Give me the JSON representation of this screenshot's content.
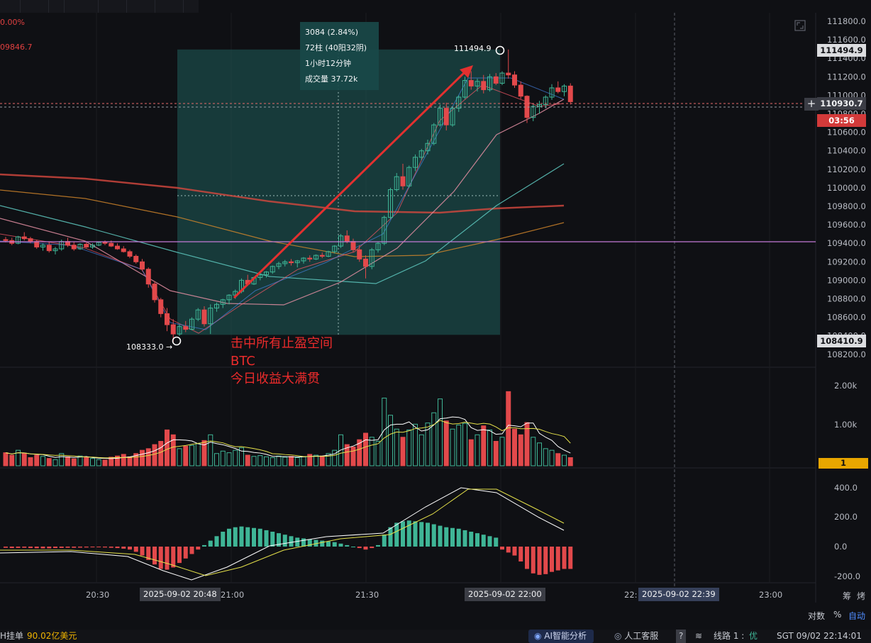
{
  "header": {
    "pct_change": "0.00%",
    "prev_price": "09846.7"
  },
  "measure_box": {
    "line1": "3084 (2.84%)",
    "line2": "72柱 (40阳32阴)",
    "line3": "1小时12分钟",
    "line4": "成交量 37.72k"
  },
  "annotation": {
    "line1": "击中所有止盈空间",
    "line2": "BTC",
    "line3": "今日收益大满贯"
  },
  "markers": {
    "high": "111494.9",
    "low": "108333.0 →"
  },
  "price_axis": {
    "ticks": [
      "111800.0",
      "111600.0",
      "111400.0",
      "111200.0",
      "111000.0",
      "110800.0",
      "110600.0",
      "110400.0",
      "110200.0",
      "110000.0",
      "109800.0",
      "109600.0",
      "109400.0",
      "109200.0",
      "109000.0",
      "108800.0",
      "108600.0",
      "108400.0",
      "108200.0"
    ],
    "tag_high": "111494.9",
    "tag_last": "110930.7",
    "tag_countdown": "03:56",
    "tag_low": "108410.9"
  },
  "volume_axis": {
    "ticks": [
      "2.00k",
      "1.00k"
    ],
    "tag": "1"
  },
  "macd_axis": {
    "ticks": [
      "400.0",
      "200.0",
      "0.0",
      "-200.0"
    ]
  },
  "time_axis": {
    "ticks": [
      "20:30",
      "21:00",
      "21:30",
      "22:",
      "23:00"
    ],
    "tag_start": "2025-09-02 20:48",
    "tag_end": "2025-09-02 22:00",
    "tag_cursor": "2025-09-02 22:39"
  },
  "axis_controls": {
    "log": "对数",
    "percent": "%",
    "auto": "自动"
  },
  "right_chars": {
    "a": "筹",
    "b": "烤"
  },
  "status_bar": {
    "orders_label": "H挂单",
    "orders_value": "90.02亿美元",
    "ai_label": "AI智能分析",
    "service_label": "人工客服",
    "help": "?",
    "route_label": "线路 1 :",
    "route_quality": "优",
    "clock": "SGT  09/02 22:14:01"
  },
  "colors": {
    "up": "#3fb596",
    "down": "#e2494b",
    "measure_fill": "#1f5c5a",
    "ma_red": "#d8483f",
    "ma_orange": "#d88a2a",
    "ma_teal": "#5ec9c0",
    "ma_pink": "#e58fa3",
    "ma_purple": "#c47ad8",
    "arrow": "#e3302f"
  },
  "chart_data": {
    "type": "candlestick",
    "interval_minutes": 1,
    "ohlc": [
      [
        109440,
        109470,
        109410,
        109430
      ],
      [
        109430,
        109460,
        109380,
        109400
      ],
      [
        109400,
        109480,
        109390,
        109470
      ],
      [
        109470,
        109520,
        109430,
        109450
      ],
      [
        109450,
        109470,
        109400,
        109420
      ],
      [
        109420,
        109440,
        109340,
        109360
      ],
      [
        109360,
        109400,
        109320,
        109380
      ],
      [
        109380,
        109420,
        109300,
        109320
      ],
      [
        109320,
        109360,
        109280,
        109340
      ],
      [
        109340,
        109440,
        109320,
        109420
      ],
      [
        109420,
        109460,
        109360,
        109380
      ],
      [
        109380,
        109420,
        109320,
        109340
      ],
      [
        109340,
        109400,
        109330,
        109390
      ],
      [
        109390,
        109420,
        109350,
        109360
      ],
      [
        109360,
        109400,
        109340,
        109380
      ],
      [
        109380,
        109420,
        109370,
        109410
      ],
      [
        109410,
        109430,
        109380,
        109400
      ],
      [
        109400,
        109430,
        109360,
        109370
      ],
      [
        109370,
        109400,
        109330,
        109340
      ],
      [
        109340,
        109370,
        109300,
        109310
      ],
      [
        109310,
        109330,
        109240,
        109260
      ],
      [
        109260,
        109280,
        109180,
        109200
      ],
      [
        109200,
        109230,
        109100,
        109120
      ],
      [
        109120,
        109140,
        108920,
        108960
      ],
      [
        108960,
        108990,
        108760,
        108790
      ],
      [
        108790,
        108810,
        108600,
        108640
      ],
      [
        108640,
        108700,
        108450,
        108520
      ],
      [
        108520,
        108580,
        108333,
        108420
      ],
      [
        108420,
        108520,
        108400,
        108500
      ],
      [
        108500,
        108560,
        108440,
        108470
      ],
      [
        108470,
        108600,
        108460,
        108580
      ],
      [
        108580,
        108700,
        108560,
        108680
      ],
      [
        108680,
        108720,
        108500,
        108530
      ],
      [
        108530,
        108740,
        108420,
        108700
      ],
      [
        108700,
        108760,
        108660,
        108740
      ],
      [
        108740,
        108800,
        108700,
        108790
      ],
      [
        108790,
        108850,
        108740,
        108840
      ],
      [
        108840,
        108900,
        108800,
        108880
      ],
      [
        108880,
        109020,
        108860,
        109000
      ],
      [
        109000,
        109060,
        108940,
        108960
      ],
      [
        108960,
        109040,
        108950,
        109030
      ],
      [
        109030,
        109080,
        109000,
        109060
      ],
      [
        109060,
        109100,
        109030,
        109090
      ],
      [
        109090,
        109160,
        109070,
        109150
      ],
      [
        109150,
        109200,
        109120,
        109180
      ],
      [
        109180,
        109220,
        109150,
        109200
      ],
      [
        109200,
        109230,
        109160,
        109190
      ],
      [
        109190,
        109220,
        109140,
        109210
      ],
      [
        109210,
        109250,
        109180,
        109240
      ],
      [
        109240,
        109270,
        109200,
        109230
      ],
      [
        109230,
        109280,
        109220,
        109270
      ],
      [
        109270,
        109300,
        109240,
        109260
      ],
      [
        109260,
        109320,
        109250,
        109310
      ],
      [
        109310,
        109380,
        109290,
        109370
      ],
      [
        109370,
        109500,
        109350,
        109480
      ],
      [
        109480,
        109540,
        109400,
        109420
      ],
      [
        109420,
        109450,
        109300,
        109330
      ],
      [
        109330,
        109380,
        109200,
        109230
      ],
      [
        109230,
        109270,
        109020,
        109150
      ],
      [
        109150,
        109350,
        109120,
        109330
      ],
      [
        109330,
        109420,
        109300,
        109400
      ],
      [
        109400,
        109700,
        109380,
        109680
      ],
      [
        109680,
        110000,
        109660,
        109980
      ],
      [
        109980,
        110160,
        109960,
        110120
      ],
      [
        110120,
        110260,
        109980,
        110020
      ],
      [
        110020,
        110240,
        110000,
        110220
      ],
      [
        110220,
        110360,
        110180,
        110330
      ],
      [
        110330,
        110420,
        110300,
        110400
      ],
      [
        110400,
        110520,
        110360,
        110480
      ],
      [
        110480,
        110700,
        110460,
        110680
      ],
      [
        110680,
        110900,
        110660,
        110860
      ],
      [
        110860,
        110920,
        110620,
        110680
      ],
      [
        110680,
        110880,
        110660,
        110860
      ],
      [
        110860,
        111000,
        110820,
        110980
      ],
      [
        110980,
        111200,
        110960,
        111160
      ],
      [
        111160,
        111260,
        111060,
        111100
      ],
      [
        111100,
        111180,
        111040,
        111150
      ],
      [
        111150,
        111220,
        111020,
        111060
      ],
      [
        111060,
        111230,
        111040,
        111200
      ],
      [
        111200,
        111240,
        111110,
        111130
      ],
      [
        111130,
        111260,
        111110,
        111240
      ],
      [
        111240,
        111494.9,
        111180,
        111220
      ],
      [
        111220,
        111260,
        111080,
        111110
      ],
      [
        111110,
        111150,
        110960,
        110990
      ],
      [
        110990,
        111000,
        110700,
        110760
      ],
      [
        110760,
        110900,
        110720,
        110880
      ],
      [
        110880,
        110940,
        110800,
        110900
      ],
      [
        110900,
        111000,
        110860,
        110980
      ],
      [
        110980,
        111120,
        110950,
        111080
      ],
      [
        111080,
        111150,
        111020,
        111040
      ],
      [
        111040,
        111120,
        110990,
        111100
      ],
      [
        111100,
        111130,
        110900,
        110930.7
      ]
    ],
    "volume": [
      320,
      260,
      380,
      300,
      200,
      260,
      230,
      180,
      150,
      300,
      220,
      170,
      240,
      200,
      180,
      150,
      140,
      210,
      240,
      280,
      220,
      300,
      380,
      420,
      520,
      600,
      880,
      760,
      420,
      480,
      500,
      540,
      620,
      760,
      300,
      360,
      320,
      380,
      440,
      260,
      230,
      250,
      220,
      200,
      240,
      210,
      230,
      200,
      220,
      280,
      260,
      240,
      300,
      380,
      760,
      520,
      460,
      640,
      800,
      700,
      600,
      1660,
      1240,
      900,
      700,
      880,
      1020,
      760,
      1050,
      1300,
      1640,
      1100,
      900,
      1000,
      1040,
      640,
      760,
      980,
      880,
      600,
      700,
      1820,
      900,
      760,
      1060,
      700,
      560,
      420,
      380,
      300,
      260,
      200
    ],
    "macd_hist": [
      -8,
      -10,
      -9,
      -8,
      -10,
      -11,
      -12,
      -12,
      -10,
      -9,
      -8,
      -8,
      -7,
      -6,
      -5,
      -5,
      -6,
      -8,
      -10,
      -14,
      -20,
      -35,
      -60,
      -90,
      -120,
      -150,
      -155,
      -140,
      -110,
      -80,
      -50,
      -20,
      10,
      40,
      70,
      100,
      120,
      130,
      135,
      130,
      125,
      120,
      110,
      100,
      90,
      80,
      70,
      60,
      55,
      50,
      45,
      40,
      35,
      30,
      20,
      10,
      0,
      -10,
      -20,
      -10,
      10,
      80,
      130,
      160,
      170,
      175,
      170,
      165,
      160,
      150,
      140,
      130,
      125,
      120,
      110,
      100,
      90,
      80,
      70,
      60,
      -20,
      -40,
      -60,
      -100,
      -150,
      -180,
      -190,
      -185,
      -170,
      -160,
      -150,
      -150
    ],
    "markers": {
      "high": 111494.9,
      "low": 108333.0
    },
    "measure": {
      "change": 3084,
      "change_pct": 2.84,
      "bars": 72,
      "up_bars": 40,
      "down_bars": 32,
      "duration": "1小时12分钟",
      "volume": "37.72k"
    },
    "y_range": [
      108100,
      111900
    ]
  }
}
